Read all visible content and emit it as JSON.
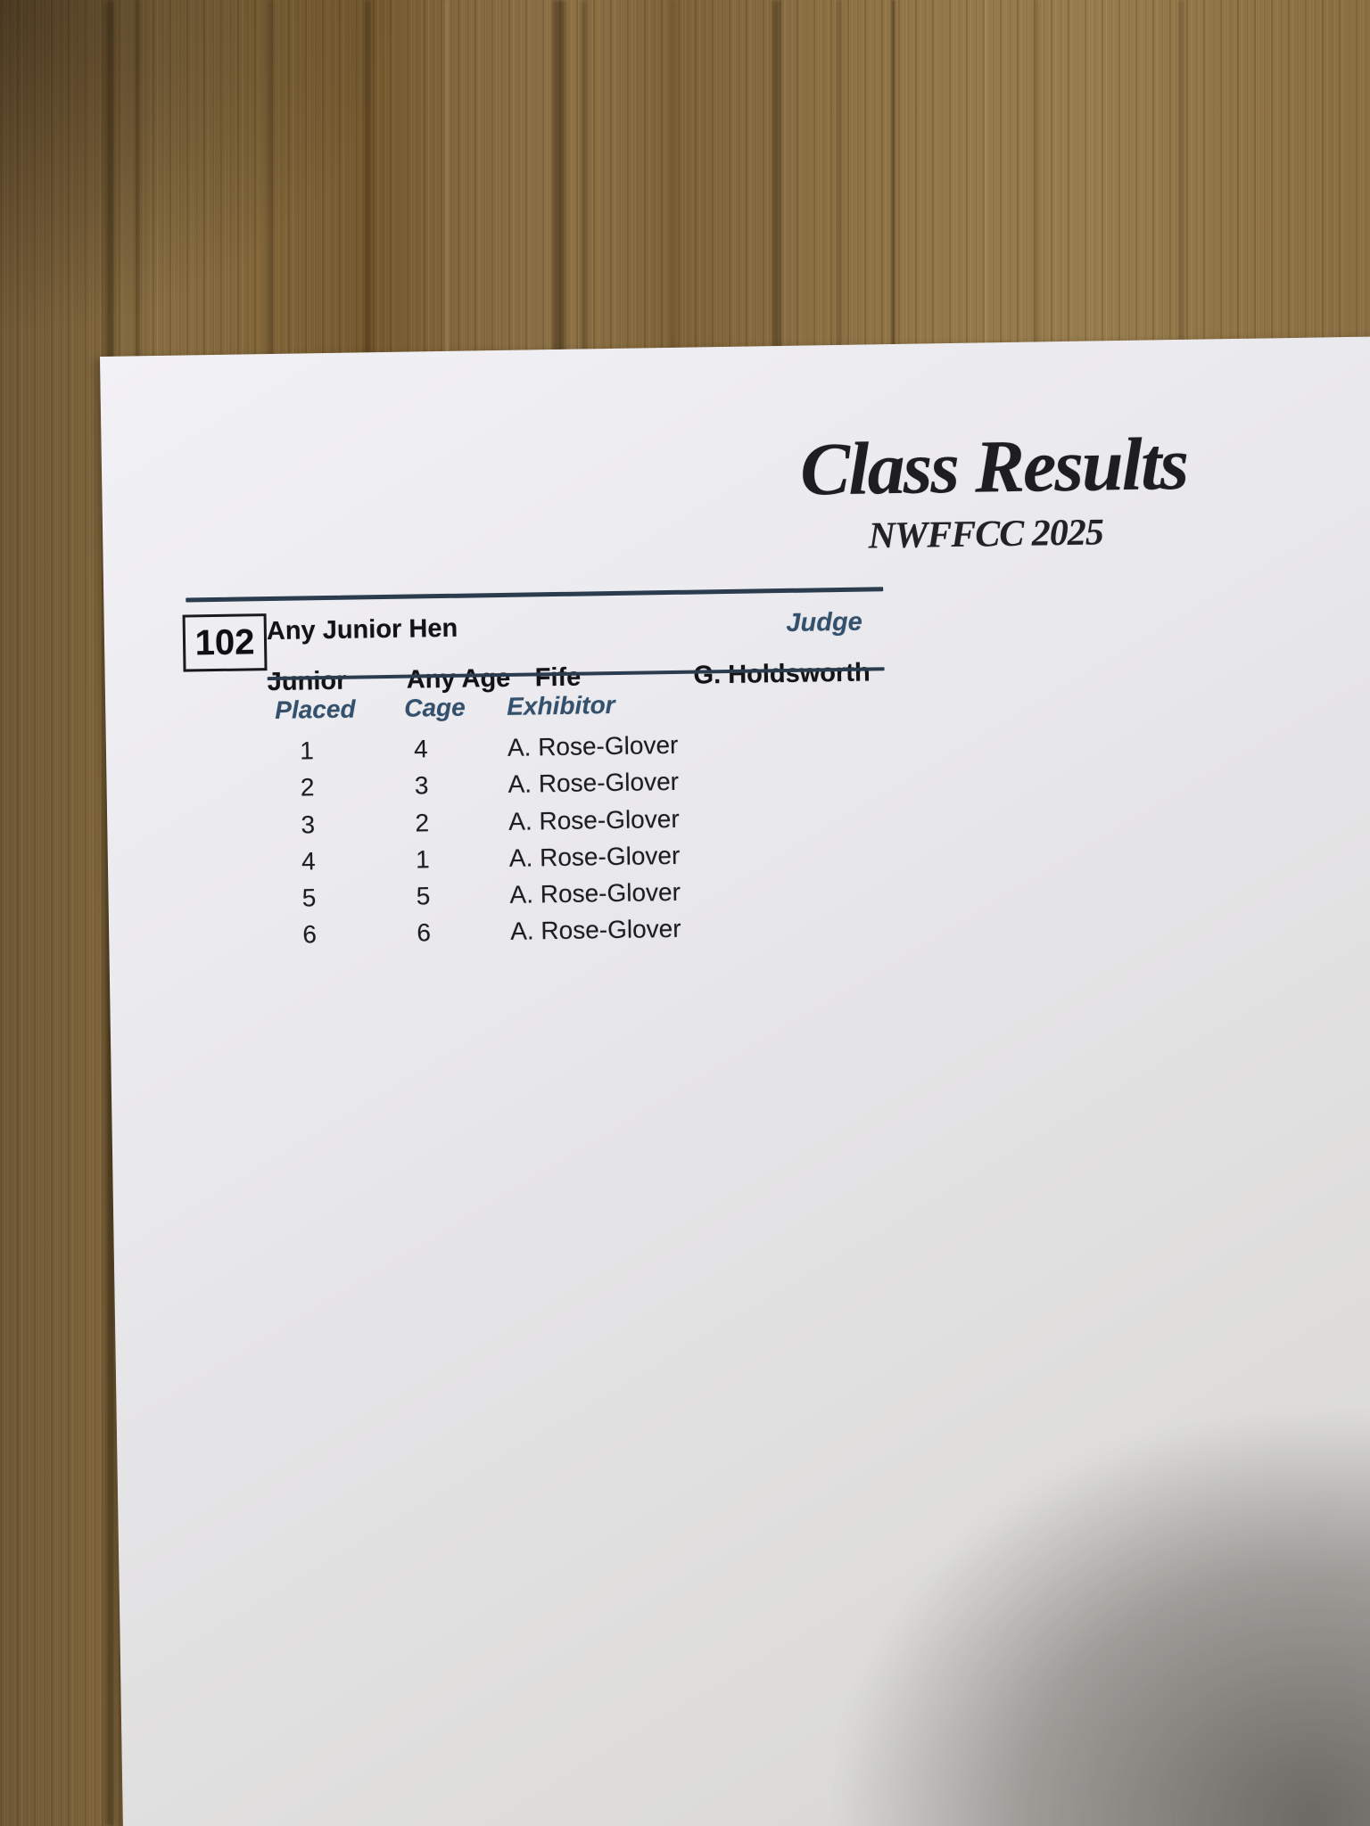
{
  "document": {
    "title": "Class Results",
    "subtitle": "NWFFCC 2025",
    "class_number": "102",
    "class_name": "Any Junior Hen",
    "age_group": "Junior",
    "age_category": "Any Age",
    "breed": "Fife",
    "judge_label": "Judge",
    "judge_name": "G. Holdsworth",
    "table": {
      "headers": [
        "Placed",
        "Cage",
        "Exhibitor"
      ],
      "rows": [
        {
          "placed": "1",
          "cage": "4",
          "exhibitor": "A. Rose-Glover"
        },
        {
          "placed": "2",
          "cage": "3",
          "exhibitor": "A. Rose-Glover"
        },
        {
          "placed": "3",
          "cage": "2",
          "exhibitor": "A. Rose-Glover"
        },
        {
          "placed": "4",
          "cage": "1",
          "exhibitor": "A. Rose-Glover"
        },
        {
          "placed": "5",
          "cage": "5",
          "exhibitor": "A. Rose-Glover"
        },
        {
          "placed": "6",
          "cage": "6",
          "exhibitor": "A. Rose-Glover"
        }
      ]
    },
    "colors": {
      "accent_navy": "#33506c",
      "rule_navy": "#2b3c4e",
      "text_black": "#1d1d1f",
      "paper": "#e7e6e9",
      "wood_brown": "#87724a"
    }
  }
}
